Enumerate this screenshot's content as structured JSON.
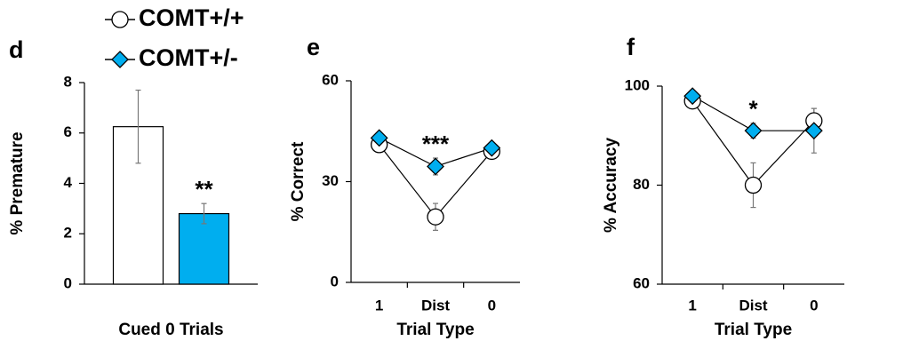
{
  "chart_data": [
    {
      "type": "bar",
      "panel": "d",
      "ylabel": "% Premature",
      "xlabel": "Cued 0 Trials",
      "categories": [
        null
      ],
      "ylim": [
        0,
        8
      ],
      "yticks": [
        0,
        2,
        4,
        6,
        8
      ],
      "series": [
        {
          "name": "COMT+/+",
          "color": "#ffffff",
          "marker": "circle",
          "values": [
            6.25
          ],
          "error": [
            1.45
          ]
        },
        {
          "name": "COMT+/-",
          "color": "#00aeef",
          "marker": "diamond",
          "values": [
            2.8
          ],
          "error": [
            0.4
          ]
        }
      ],
      "annotations": [
        {
          "text": "**",
          "category": 0
        }
      ]
    },
    {
      "type": "line",
      "panel": "e",
      "ylabel": "% Correct",
      "xlabel": "Trial Type",
      "categories": [
        "1",
        "Dist",
        "0"
      ],
      "ylim": [
        0,
        60
      ],
      "yticks": [
        0,
        30,
        60
      ],
      "series": [
        {
          "color": "#ffffff",
          "marker": "circle",
          "values": [
            41,
            19.5,
            39
          ],
          "error": [
            1,
            4,
            1
          ]
        },
        {
          "color": "#00aeef",
          "marker": "diamond",
          "values": [
            43,
            34.5,
            40
          ],
          "error": [
            1,
            2.5,
            1
          ]
        }
      ],
      "annotations": [
        {
          "text": "***",
          "category": 1
        }
      ]
    },
    {
      "type": "line",
      "panel": "f",
      "ylabel": "% Accuracy",
      "xlabel": "Trial Type",
      "categories": [
        "1",
        "Dist",
        "0"
      ],
      "ylim": [
        60,
        100
      ],
      "yticks": [
        60,
        80,
        100
      ],
      "series": [
        {
          "color": "#ffffff",
          "marker": "circle",
          "values": [
            97,
            80,
            93
          ],
          "error": [
            1,
            4.5,
            2.5
          ]
        },
        {
          "color": "#00aeef",
          "marker": "diamond",
          "values": [
            98,
            91,
            91
          ],
          "error": [
            0.5,
            1.5,
            4.5
          ]
        }
      ],
      "annotations": [
        {
          "text": "*",
          "category": 1
        }
      ]
    }
  ]
}
